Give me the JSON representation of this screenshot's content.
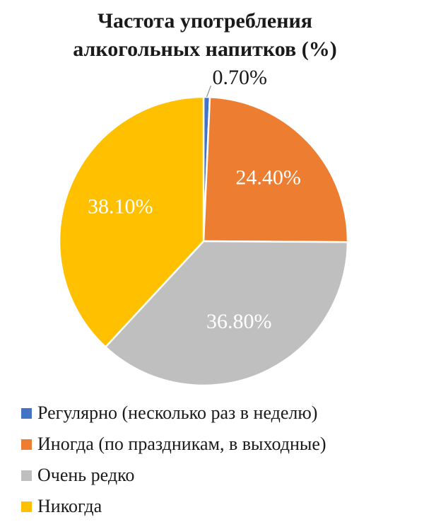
{
  "chart_data": {
    "type": "pie",
    "title_lines": [
      "Частота употребления",
      "алкогольных напитков (%)"
    ],
    "unit": "%",
    "slices": [
      {
        "name": "Регулярно (несколько раз в неделю)",
        "value": 0.7,
        "label": "0.70%",
        "color": "#4472c4",
        "label_color": "#1a1a1a"
      },
      {
        "name": "Иногда (по праздникам, в выходные)",
        "value": 24.4,
        "label": "24.40%",
        "color": "#ed7d31",
        "label_color": "#ffffff"
      },
      {
        "name": "Очень редко",
        "value": 36.8,
        "label": "36.80%",
        "color": "#bfbfbf",
        "label_color": "#ffffff"
      },
      {
        "name": "Никогда",
        "value": 38.1,
        "label": "38.10%",
        "color": "#ffc000",
        "label_color": "#ffffff"
      }
    ],
    "start_angle": "12 o'clock",
    "direction": "clockwise",
    "legend_position": "bottom"
  }
}
